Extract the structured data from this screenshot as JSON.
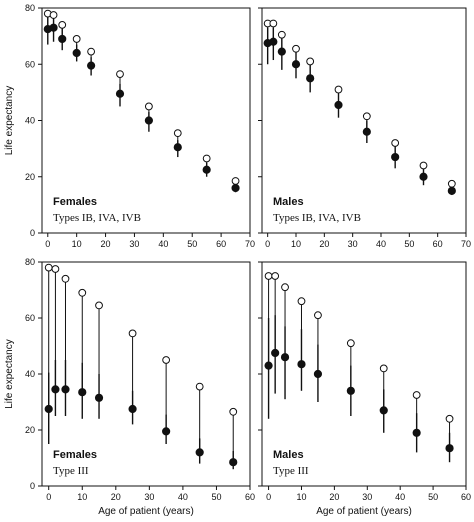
{
  "figure": {
    "ylabel": "Life expectancy",
    "xlabel": "Age of patient (years)"
  },
  "chart_data": [
    {
      "type": "scatter",
      "title": "Females",
      "subtitle": "Types IB, IVA, IVB",
      "ylabel": "Life expectancy",
      "xlabel": "",
      "xlim": [
        -2,
        70
      ],
      "ylim": [
        0,
        80
      ],
      "xticks": [
        0,
        10,
        20,
        30,
        40,
        50,
        60,
        70
      ],
      "yticks": [
        0,
        20,
        40,
        60,
        80
      ],
      "series": [
        {
          "marker": "open",
          "x": [
            0,
            2,
            5,
            10,
            15,
            25,
            35,
            45,
            55,
            65
          ],
          "y": [
            78,
            77.5,
            74,
            69,
            64.5,
            56.5,
            45,
            35.5,
            26.5,
            18.5
          ]
        },
        {
          "marker": "filled",
          "x": [
            0,
            2,
            5,
            10,
            15,
            25,
            35,
            45,
            55,
            65
          ],
          "y": [
            72.5,
            73,
            69,
            64,
            59.5,
            49.5,
            40,
            30.5,
            22.5,
            16
          ],
          "err_low": [
            67,
            68,
            65,
            61,
            56,
            45,
            36,
            27,
            20,
            14.5
          ],
          "err_high": [
            78,
            77,
            73,
            67,
            62.5,
            53,
            43,
            33,
            25,
            17.5
          ]
        }
      ]
    },
    {
      "type": "scatter",
      "title": "Males",
      "subtitle": "Types IB, IVA, IVB",
      "ylabel": "",
      "xlabel": "",
      "xlim": [
        -2,
        70
      ],
      "ylim": [
        0,
        80
      ],
      "xticks": [
        0,
        10,
        20,
        30,
        40,
        50,
        60,
        70
      ],
      "yticks": [
        0,
        20,
        40,
        60,
        80
      ],
      "series": [
        {
          "marker": "open",
          "x": [
            0,
            2,
            5,
            10,
            15,
            25,
            35,
            45,
            55,
            65
          ],
          "y": [
            74.5,
            74.5,
            70.5,
            65.5,
            61,
            51,
            41.5,
            32,
            24,
            17.5
          ]
        },
        {
          "marker": "filled",
          "x": [
            0,
            2,
            5,
            10,
            15,
            25,
            35,
            45,
            55,
            65
          ],
          "y": [
            67.5,
            68,
            64.5,
            60,
            55,
            45.5,
            36,
            27,
            20,
            15
          ],
          "err_low": [
            60,
            61.5,
            58,
            55,
            50,
            41,
            32,
            23,
            17,
            13.5
          ],
          "err_high": [
            73,
            73,
            70,
            65,
            60,
            49.5,
            40,
            31,
            23,
            16.5
          ]
        }
      ]
    },
    {
      "type": "scatter",
      "title": "Females",
      "subtitle": "Type III",
      "ylabel": "Life expectancy",
      "xlabel": "Age of patient (years)",
      "xlim": [
        -2,
        60
      ],
      "ylim": [
        0,
        80
      ],
      "xticks": [
        0,
        10,
        20,
        30,
        40,
        50,
        60
      ],
      "yticks": [
        0,
        20,
        40,
        60,
        80
      ],
      "series": [
        {
          "marker": "open",
          "x": [
            0,
            2,
            5,
            10,
            15,
            25,
            35,
            45,
            55
          ],
          "y": [
            78,
            77.5,
            74,
            69,
            64.5,
            54.5,
            45,
            35.5,
            26.5
          ]
        },
        {
          "marker": "filled",
          "x": [
            0,
            2,
            5,
            10,
            15,
            25,
            35,
            45,
            55
          ],
          "y": [
            27.5,
            34.5,
            34.5,
            33.5,
            31.5,
            27.5,
            19.5,
            12,
            8.5
          ],
          "err_low": [
            15,
            25,
            25,
            24,
            24,
            22,
            15,
            8,
            6
          ],
          "err_high": [
            40.5,
            45,
            45,
            44,
            40,
            34,
            25.5,
            17,
            12.5
          ]
        }
      ]
    },
    {
      "type": "scatter",
      "title": "Males",
      "subtitle": "Type III",
      "ylabel": "",
      "xlabel": "Age of patient (years)",
      "xlim": [
        -2,
        60
      ],
      "ylim": [
        0,
        80
      ],
      "xticks": [
        0,
        10,
        20,
        30,
        40,
        50,
        60
      ],
      "yticks": [
        0,
        20,
        40,
        60,
        80
      ],
      "series": [
        {
          "marker": "open",
          "x": [
            0,
            2,
            5,
            10,
            15,
            25,
            35,
            45,
            55
          ],
          "y": [
            75,
            75,
            71,
            66,
            61,
            51,
            42,
            32.5,
            24
          ]
        },
        {
          "marker": "filled",
          "x": [
            0,
            2,
            5,
            10,
            15,
            25,
            35,
            45,
            55
          ],
          "y": [
            43,
            47.5,
            46,
            43.5,
            40,
            34,
            27,
            19,
            13.5
          ],
          "err_low": [
            24,
            33,
            31,
            34,
            30,
            25,
            19,
            12,
            8.5
          ],
          "err_high": [
            60,
            61,
            57,
            56,
            50.5,
            43,
            34.5,
            26,
            19
          ]
        }
      ]
    }
  ]
}
